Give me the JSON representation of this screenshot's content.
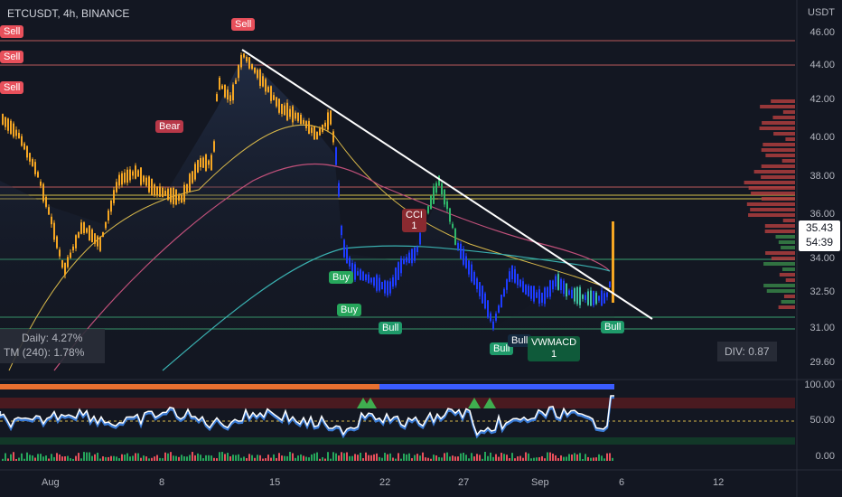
{
  "header": {
    "symbol_title": "ETCUSDT, 4h, BINANCE",
    "currency": "USDT"
  },
  "price_axis": {
    "labels": [
      "46.00",
      "44.00",
      "42.00",
      "40.00",
      "38.00",
      "36.00",
      "34.00",
      "32.50",
      "31.00",
      "29.60"
    ]
  },
  "last_price": {
    "value": "35.43",
    "countdown": "54:39"
  },
  "oscillator_axis": {
    "labels": [
      "100.00",
      "50.00",
      "0.00"
    ]
  },
  "time_axis": {
    "labels": [
      "Aug",
      "8",
      "15",
      "22",
      "27",
      "Sep",
      "6",
      "12"
    ]
  },
  "signals": {
    "sell_1": "Sell",
    "sell_2": "Sell",
    "sell_3": "Sell",
    "sell_top": "Sell",
    "bear": "Bear",
    "buy_1": "Buy",
    "buy_2": "Buy",
    "bull_1": "Bull",
    "bull_2": "Bull",
    "bull_3": "Bull",
    "bull_4": "Bull",
    "cci_line1": "CCI",
    "cci_line2": "1",
    "vwmacd_line1": "VWMACD",
    "vwmacd_line2": "1"
  },
  "stats": {
    "daily": "Daily: 4.27%",
    "tm": "TM (240): 1.78%",
    "div": "DIV: 0.87"
  },
  "colors": {
    "background": "#131722",
    "sell": "#e8505b",
    "bull": "#1f9a6a",
    "trendline": "#ffffff",
    "candle_orange": "#f5a623",
    "candle_blue": "#1e3cff",
    "candle_green": "#26a65b"
  }
}
